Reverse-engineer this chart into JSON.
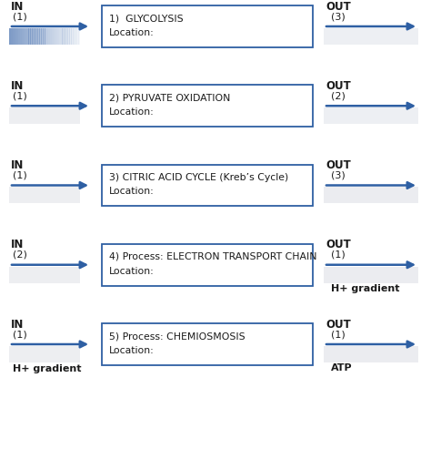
{
  "background_color": "#ffffff",
  "rows": [
    {
      "in_label": "IN",
      "out_label": "OUT",
      "in_count": "(1)",
      "out_count": "(3)",
      "in_sublabel": "",
      "out_sublabel": "",
      "box_title": "1)  GLYCOLYSIS",
      "box_sub": "Location:",
      "loc_color": "#b8bece",
      "loc_gradient": false,
      "in_rect_color": "#7090c0",
      "in_rect_gradient": true,
      "out_rect_color": "#dde0e8",
      "out_rect_gradient": false
    },
    {
      "in_label": "IN",
      "out_label": "OUT",
      "in_count": "(1)",
      "out_count": "(2)",
      "in_sublabel": "",
      "out_sublabel": "",
      "box_title": "2) PYRUVATE OXIDATION",
      "box_sub": "Location:",
      "loc_color": "#c8cad4",
      "loc_gradient": false,
      "in_rect_color": "#d8dae2",
      "in_rect_gradient": false,
      "out_rect_color": "#dde0e8",
      "out_rect_gradient": false
    },
    {
      "in_label": "IN",
      "out_label": "OUT",
      "in_count": "(1)",
      "out_count": "(3)",
      "in_sublabel": "",
      "out_sublabel": "",
      "box_title": "3) CITRIC ACID CYCLE (Kreb’s Cycle)",
      "box_sub": "Location:",
      "loc_color": "#8090a8",
      "loc_gradient": true,
      "in_rect_color": "#d8dae2",
      "in_rect_gradient": false,
      "out_rect_color": "#d8dae2",
      "out_rect_gradient": false
    },
    {
      "in_label": "IN",
      "out_label": "OUT",
      "in_count": "(2)",
      "out_count": "(1)",
      "in_sublabel": "",
      "out_sublabel": "H+ gradient",
      "box_title": "4) Process: ELECTRON TRANSPORT CHAIN",
      "box_sub": "Location:",
      "loc_color": "#c0c4d0",
      "loc_gradient": false,
      "in_rect_color": "#d8dae2",
      "in_rect_gradient": false,
      "out_rect_color": "#d8dae2",
      "out_rect_gradient": false
    },
    {
      "in_label": "IN",
      "out_label": "OUT",
      "in_count": "(1)",
      "out_count": "(1)",
      "in_sublabel": "H+ gradient",
      "out_sublabel": "ATP",
      "box_title": "5) Process: CHEMIOSMOSIS",
      "box_sub": "Location:",
      "loc_color": "#c0c4d0",
      "loc_gradient": false,
      "in_rect_color": "#d8dae2",
      "in_rect_gradient": false,
      "out_rect_color": "#d8dae2",
      "out_rect_gradient": false
    }
  ],
  "arrow_color": "#2E5FA3",
  "box_border_color": "#2E5FA3",
  "text_color": "#1a1a1a"
}
